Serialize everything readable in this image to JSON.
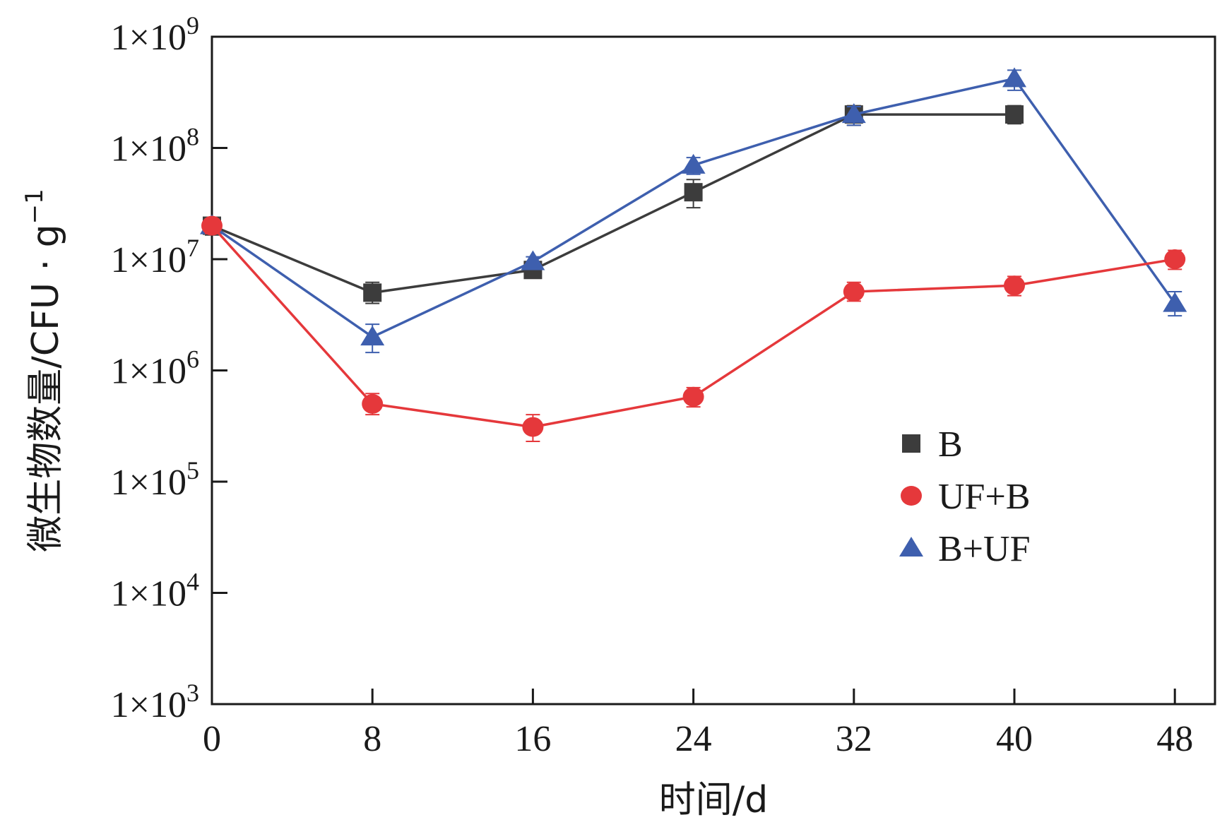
{
  "chart_data": {
    "type": "line",
    "title": "",
    "xlabel": "时间/d",
    "ylabel": "微生物数量/CFU · g",
    "ylabel_superscript": "−1",
    "x_ticks": [
      0,
      8,
      16,
      24,
      32,
      40,
      48
    ],
    "xlim": [
      0,
      50
    ],
    "y_scale": "log",
    "ylim": [
      1000,
      1000000000
    ],
    "y_ticks": [
      {
        "value": 1000,
        "base": "1×10",
        "exp": "3"
      },
      {
        "value": 10000,
        "base": "1×10",
        "exp": "4"
      },
      {
        "value": 100000,
        "base": "1×10",
        "exp": "5"
      },
      {
        "value": 1000000,
        "base": "1×10",
        "exp": "6"
      },
      {
        "value": 10000000,
        "base": "1×10",
        "exp": "7"
      },
      {
        "value": 100000000,
        "base": "1×10",
        "exp": "8"
      },
      {
        "value": 1000000000,
        "base": "1×10",
        "exp": "9"
      }
    ],
    "grid": false,
    "legend_position": "center-right",
    "series": [
      {
        "name": "B",
        "marker": "square",
        "color": "#3c3c3c",
        "x": [
          0,
          8,
          16,
          24,
          32,
          40
        ],
        "y": [
          20000000,
          5000000,
          8000000,
          40000000,
          200000000,
          200000000
        ],
        "err_low": [
          16500000,
          4000000,
          7000000,
          29000000,
          160000000,
          165000000
        ],
        "err_high": [
          23500000,
          6200000,
          9500000,
          52000000,
          240000000,
          240000000
        ]
      },
      {
        "name": "UF+B",
        "marker": "circle",
        "color": "#e5383b",
        "x": [
          0,
          8,
          16,
          24,
          32,
          40,
          48
        ],
        "y": [
          20000000,
          500000,
          310000,
          580000,
          5100000,
          5800000,
          10000000
        ],
        "err_low": [
          17000000,
          400000,
          230000,
          470000,
          4200000,
          4700000,
          8100000
        ],
        "err_high": [
          23000000,
          620000,
          400000,
          700000,
          6200000,
          7000000,
          12000000
        ]
      },
      {
        "name": "B+UF",
        "marker": "triangle",
        "color": "#3e5fae",
        "x": [
          0,
          8,
          16,
          24,
          32,
          40,
          48
        ],
        "y": [
          20000000,
          2000000,
          9500000,
          70000000,
          200000000,
          420000000,
          4000000
        ],
        "err_low": [
          17000000,
          1450000,
          8500000,
          58000000,
          160000000,
          330000000,
          3100000
        ],
        "err_high": [
          23000000,
          2600000,
          10500000,
          82000000,
          235000000,
          500000000,
          5100000
        ]
      }
    ]
  }
}
